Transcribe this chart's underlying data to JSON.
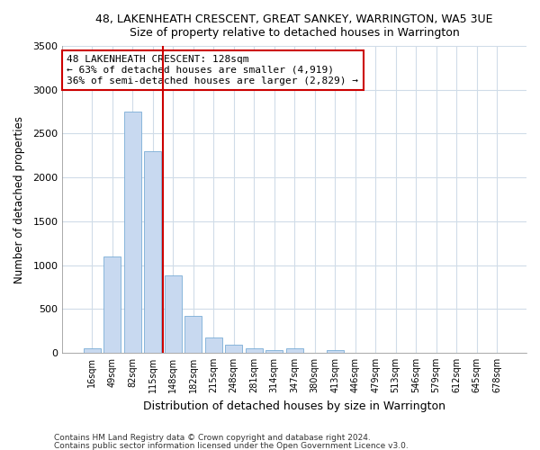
{
  "title1": "48, LAKENHEATH CRESCENT, GREAT SANKEY, WARRINGTON, WA5 3UE",
  "title2": "Size of property relative to detached houses in Warrington",
  "xlabel": "Distribution of detached houses by size in Warrington",
  "ylabel": "Number of detached properties",
  "categories": [
    "16sqm",
    "49sqm",
    "82sqm",
    "115sqm",
    "148sqm",
    "182sqm",
    "215sqm",
    "248sqm",
    "281sqm",
    "314sqm",
    "347sqm",
    "380sqm",
    "413sqm",
    "446sqm",
    "479sqm",
    "513sqm",
    "546sqm",
    "579sqm",
    "612sqm",
    "645sqm",
    "678sqm"
  ],
  "values": [
    50,
    1100,
    2750,
    2300,
    880,
    420,
    170,
    95,
    55,
    35,
    50,
    0,
    25,
    0,
    0,
    0,
    0,
    0,
    0,
    0,
    0
  ],
  "bar_color": "#c8d9f0",
  "bar_edge_color": "#7aadd6",
  "vline_x": 3.5,
  "vline_color": "#cc0000",
  "annotation_line1": "48 LAKENHEATH CRESCENT: 128sqm",
  "annotation_line2": "← 63% of detached houses are smaller (4,919)",
  "annotation_line3": "36% of semi-detached houses are larger (2,829) →",
  "annotation_box_color": "white",
  "annotation_box_edge": "#cc0000",
  "ylim": [
    0,
    3500
  ],
  "yticks": [
    0,
    500,
    1000,
    1500,
    2000,
    2500,
    3000,
    3500
  ],
  "footnote1": "Contains HM Land Registry data © Crown copyright and database right 2024.",
  "footnote2": "Contains public sector information licensed under the Open Government Licence v3.0.",
  "background_color": "#ffffff",
  "plot_background": "#ffffff",
  "grid_color": "#d0dce8"
}
